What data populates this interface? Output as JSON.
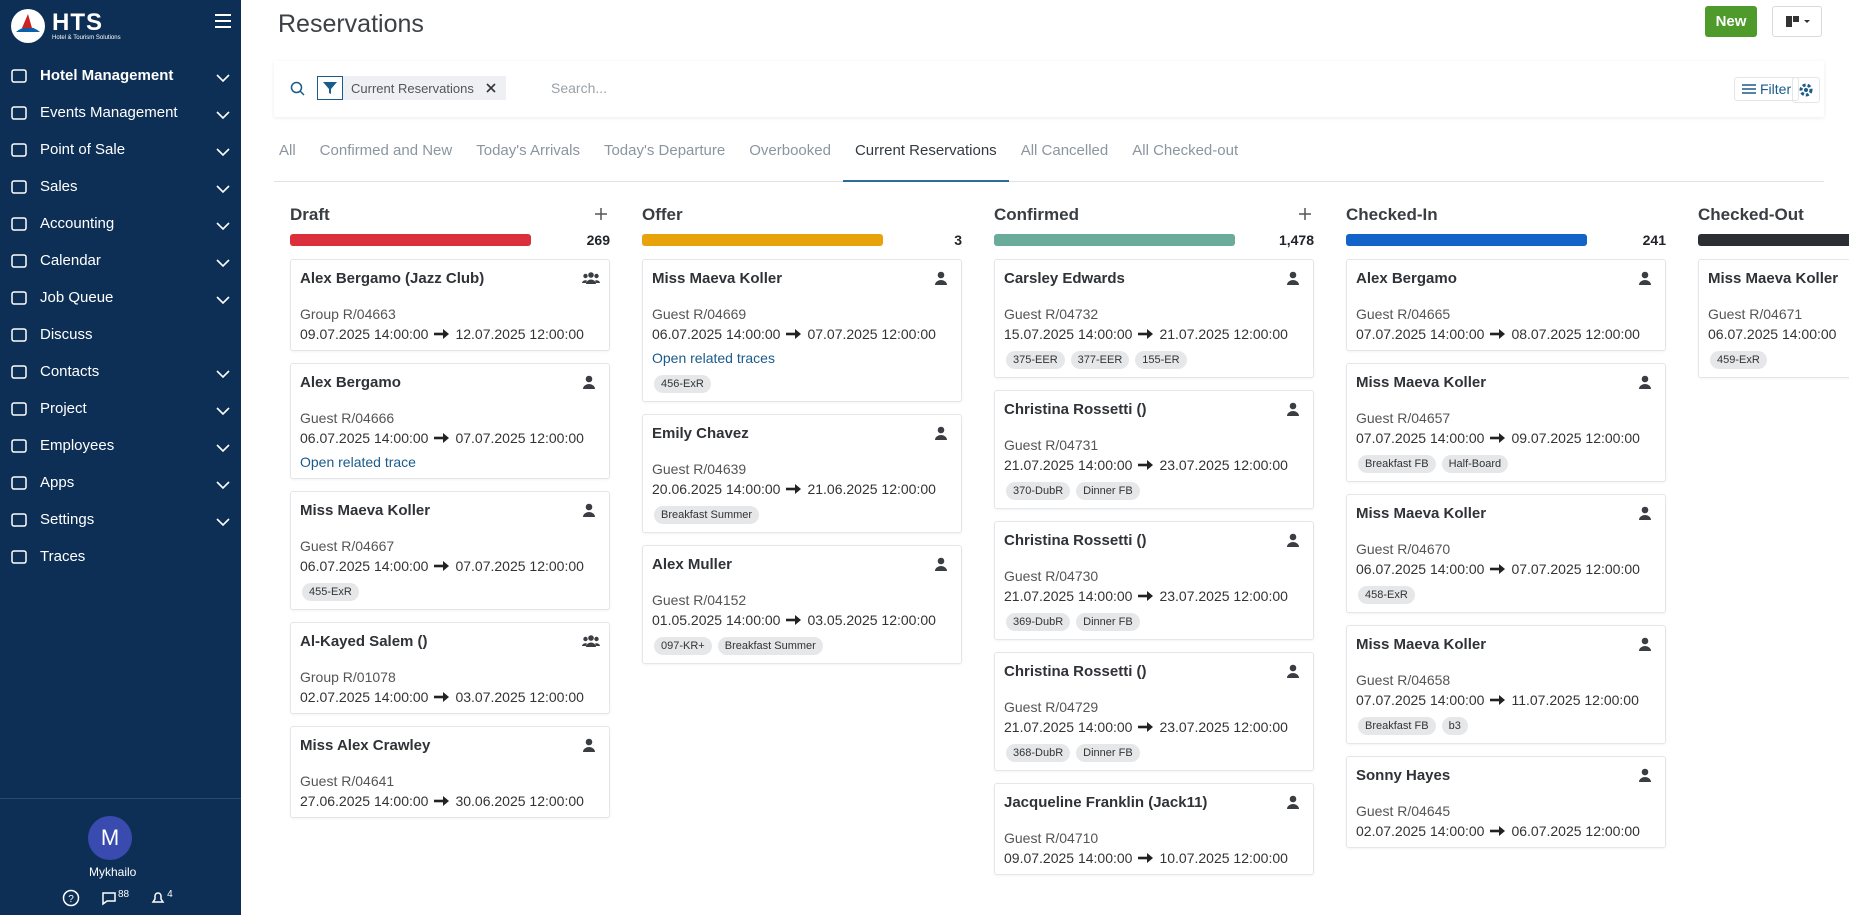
{
  "sidebar": {
    "logo": "HTS",
    "logo_subtitle": "Hotel & Tourism Solutions",
    "menu": [
      {
        "label": "Hotel Management",
        "expandable": true,
        "active": true
      },
      {
        "label": "Events Management",
        "expandable": true
      },
      {
        "label": "Point of Sale",
        "expandable": true
      },
      {
        "label": "Sales",
        "expandable": true
      },
      {
        "label": "Accounting",
        "expandable": true
      },
      {
        "label": "Calendar",
        "expandable": true
      },
      {
        "label": "Job Queue",
        "expandable": true
      },
      {
        "label": "Discuss",
        "expandable": false
      },
      {
        "label": "Contacts",
        "expandable": true
      },
      {
        "label": "Project",
        "expandable": true
      },
      {
        "label": "Employees",
        "expandable": true
      },
      {
        "label": "Apps",
        "expandable": true
      },
      {
        "label": "Settings",
        "expandable": true
      },
      {
        "label": "Traces",
        "expandable": false
      }
    ],
    "user": {
      "initial": "M",
      "name": "Mykhailo",
      "messages": "88",
      "notifications": "4"
    }
  },
  "header": {
    "title": "Reservations",
    "new_button": "New"
  },
  "search": {
    "facet": "Current Reservations",
    "placeholder": "Search...",
    "filter_button": "Filter"
  },
  "tabs": {
    "items": [
      "All",
      "Confirmed and New",
      "Today's Arrivals",
      "Today's Departure",
      "Overbooked",
      "Current Reservations",
      "All Cancelled",
      "All Checked-out"
    ],
    "active": 5
  },
  "columns": [
    {
      "name": "Draft",
      "count": "269",
      "color": "#dc2f3c",
      "addable": true,
      "cards": [
        {
          "title": "Alex Bergamo (Jazz Club)",
          "icon": "group",
          "ref": "Group R/04663",
          "from": "09.07.2025 14:00:00",
          "to": "12.07.2025 12:00:00"
        },
        {
          "title": "Alex Bergamo",
          "icon": "person",
          "ref": "Guest R/04666",
          "from": "06.07.2025 14:00:00",
          "to": "07.07.2025 12:00:00",
          "link": "Open related trace"
        },
        {
          "title": "Miss Maeva Koller",
          "icon": "person",
          "ref": "Guest R/04667",
          "from": "06.07.2025 14:00:00",
          "to": "07.07.2025 12:00:00",
          "tags": [
            "455-ExR"
          ]
        },
        {
          "title": "Al-Kayed Salem ()",
          "icon": "group",
          "ref": "Group R/01078",
          "from": "02.07.2025 14:00:00",
          "to": "03.07.2025 12:00:00"
        },
        {
          "title": "Miss Alex Crawley",
          "icon": "person",
          "ref": "Guest R/04641",
          "from": "27.06.2025 14:00:00",
          "to": "30.06.2025 12:00:00"
        }
      ]
    },
    {
      "name": "Offer",
      "count": "3",
      "color": "#e8a20c",
      "addable": false,
      "cards": [
        {
          "title": "Miss Maeva Koller",
          "icon": "person",
          "ref": "Guest R/04669",
          "from": "06.07.2025 14:00:00",
          "to": "07.07.2025 12:00:00",
          "link": "Open related traces",
          "tags": [
            "456-ExR"
          ]
        },
        {
          "title": "Emily Chavez",
          "icon": "person",
          "ref": "Guest R/04639",
          "from": "20.06.2025 14:00:00",
          "to": "21.06.2025 12:00:00",
          "tags": [
            "Breakfast Summer"
          ]
        },
        {
          "title": "Alex Muller",
          "icon": "person",
          "ref": "Guest R/04152",
          "from": "01.05.2025 14:00:00",
          "to": "03.05.2025 12:00:00",
          "tags": [
            "097-KR+",
            "Breakfast Summer"
          ]
        }
      ]
    },
    {
      "name": "Confirmed",
      "count": "1,478",
      "color": "#6aab9c",
      "addable": true,
      "cards": [
        {
          "title": "Carsley Edwards",
          "icon": "person",
          "ref": "Guest R/04732",
          "from": "15.07.2025 14:00:00",
          "to": "21.07.2025 12:00:00",
          "tags": [
            "375-EER",
            "377-EER",
            "155-ER"
          ]
        },
        {
          "title": "Christina Rossetti ()",
          "icon": "person",
          "ref": "Guest R/04731",
          "from": "21.07.2025 14:00:00",
          "to": "23.07.2025 12:00:00",
          "tags": [
            "370-DubR",
            "Dinner FB"
          ]
        },
        {
          "title": "Christina Rossetti ()",
          "icon": "person",
          "ref": "Guest R/04730",
          "from": "21.07.2025 14:00:00",
          "to": "23.07.2025 12:00:00",
          "tags": [
            "369-DubR",
            "Dinner FB"
          ]
        },
        {
          "title": "Christina Rossetti ()",
          "icon": "person",
          "ref": "Guest R/04729",
          "from": "21.07.2025 14:00:00",
          "to": "23.07.2025 12:00:00",
          "tags": [
            "368-DubR",
            "Dinner FB"
          ]
        },
        {
          "title": "Jacqueline Franklin (Jack11)",
          "icon": "person",
          "ref": "Guest R/04710",
          "from": "09.07.2025 14:00:00",
          "to": "10.07.2025 12:00:00"
        }
      ]
    },
    {
      "name": "Checked-In",
      "count": "241",
      "color": "#1463c8",
      "addable": false,
      "cards": [
        {
          "title": "Alex Bergamo",
          "icon": "person",
          "ref": "Guest R/04665",
          "from": "07.07.2025 14:00:00",
          "to": "08.07.2025 12:00:00"
        },
        {
          "title": "Miss Maeva Koller",
          "icon": "person",
          "ref": "Guest R/04657",
          "from": "07.07.2025 14:00:00",
          "to": "09.07.2025 12:00:00",
          "tags": [
            "Breakfast FB",
            "Half-Board"
          ]
        },
        {
          "title": "Miss Maeva Koller",
          "icon": "person",
          "ref": "Guest R/04670",
          "from": "06.07.2025 14:00:00",
          "to": "07.07.2025 12:00:00",
          "tags": [
            "458-ExR"
          ]
        },
        {
          "title": "Miss Maeva Koller",
          "icon": "person",
          "ref": "Guest R/04658",
          "from": "07.07.2025 14:00:00",
          "to": "11.07.2025 12:00:00",
          "tags": [
            "Breakfast FB",
            "b3"
          ]
        },
        {
          "title": "Sonny Hayes",
          "icon": "person",
          "ref": "Guest R/04645",
          "from": "02.07.2025 14:00:00",
          "to": "06.07.2025 12:00:00"
        }
      ]
    },
    {
      "name": "Checked-Out",
      "color": "#2b2f33",
      "addable": false,
      "cards": [
        {
          "title": "Miss Maeva Koller",
          "icon": "person",
          "ref": "Guest R/04671",
          "from": "06.07.2025 14:00:00",
          "tags": [
            "459-ExR"
          ]
        }
      ]
    }
  ]
}
